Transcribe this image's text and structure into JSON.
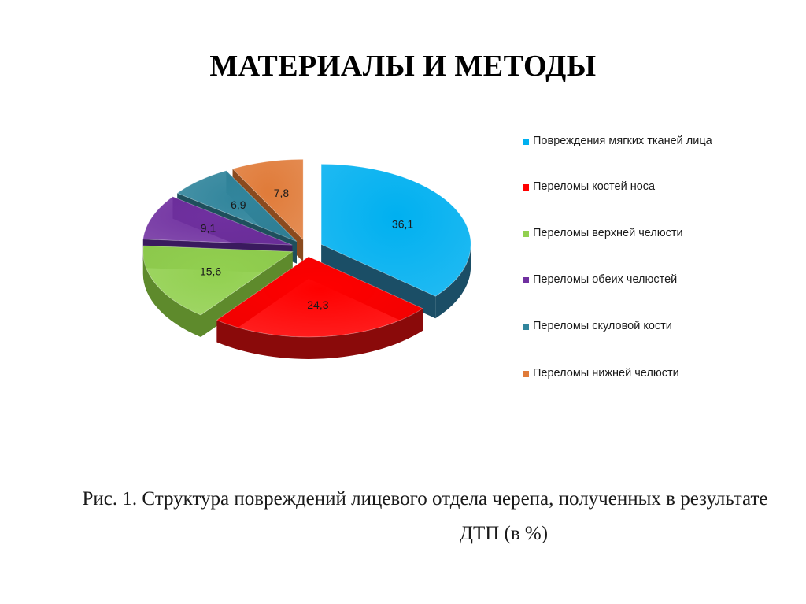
{
  "slide": {
    "title": "МАТЕРИАЛЫ И МЕТОДЫ"
  },
  "chart_data": {
    "type": "pie",
    "style": "3d-exploded",
    "categories": [
      "Повреждения мягких тканей лица",
      "Переломы костей носа",
      "Переломы верхней челюсти",
      "Переломы обеих челюстей",
      "Переломы скуловой кости",
      "Переломы нижней челюсти"
    ],
    "values": [
      36.1,
      24.3,
      15.6,
      9.1,
      6.9,
      7.8
    ],
    "data_labels": [
      "36,1",
      "24,3",
      "15,6",
      "9,1",
      "6,9",
      "7,8"
    ],
    "colors": [
      "#00B0F0",
      "#FF0000",
      "#92D050",
      "#7030A0",
      "#31859C",
      "#E07B39"
    ],
    "side_colors": [
      "#1B4E66",
      "#8A0A0A",
      "#5E8A2C",
      "#3A1A5E",
      "#1E4F5C",
      "#8A4A1E"
    ],
    "legend_position": "right",
    "title": "",
    "caption_line1": "Рис. 1. Структура повреждений лицевого отдела черепа, полученных в результате",
    "caption_line2": "ДТП  (в %)"
  }
}
